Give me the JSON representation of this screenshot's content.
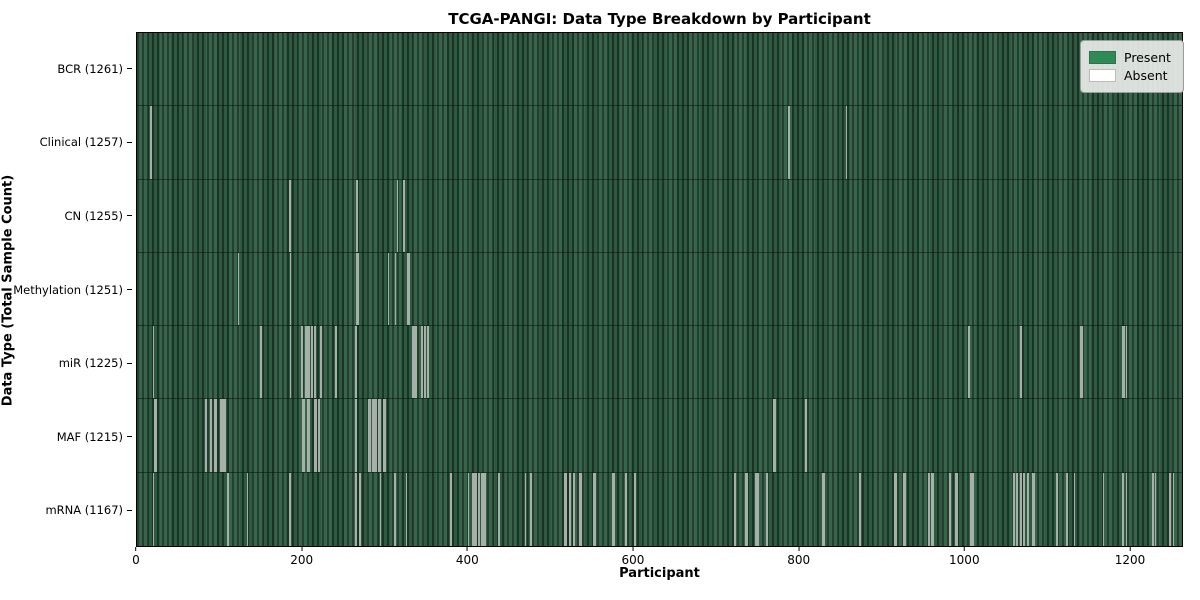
{
  "chart_data": {
    "type": "heatmap",
    "title": "TCGA-PANGI: Data Type Breakdown by Participant",
    "xlabel": "Participant",
    "ylabel": "Data Type (Total Sample Count)",
    "x_ticks": [
      0,
      200,
      400,
      600,
      800,
      1000,
      1200
    ],
    "x_max": 1264,
    "total_participants": 1261,
    "grid": false,
    "legend_position": "upper right",
    "colors": {
      "present": "#2e8b57",
      "absent": "#ffffff",
      "stripe_dark": "#1c3627",
      "stripe_light": "#2f5f44",
      "absent_line": "#a7b0a8"
    },
    "legend": [
      {
        "label": "Present",
        "color": "#2e8b57"
      },
      {
        "label": "Absent",
        "color": "#ffffff"
      }
    ],
    "rows": [
      {
        "label": "BCR (1261)",
        "data_type": "BCR",
        "count": 1261,
        "absent": []
      },
      {
        "label": "Clinical (1257)",
        "data_type": "Clinical",
        "count": 1257,
        "absent": [
          16,
          787,
          788,
          857
        ]
      },
      {
        "label": "CN (1255)",
        "data_type": "CN",
        "count": 1255,
        "absent": [
          184,
          265,
          266,
          314,
          322,
          323
        ]
      },
      {
        "label": "Methylation (1251)",
        "data_type": "Methylation",
        "count": 1251,
        "absent": [
          122,
          185,
          265,
          266,
          267,
          303,
          312,
          326,
          327,
          328
        ]
      },
      {
        "label": "miR (1225)",
        "data_type": "miR",
        "count": 1225,
        "absent": [
          19,
          149,
          185,
          198,
          199,
          203,
          204,
          206,
          207,
          210,
          211,
          214,
          215,
          221,
          222,
          240,
          264,
          333,
          334,
          336,
          337,
          343,
          344,
          347,
          348,
          351,
          352,
          1005,
          1006,
          1068,
          1069,
          1141,
          1142,
          1192,
          1193,
          1196
        ]
      },
      {
        "label": "MAF (1215)",
        "data_type": "MAF",
        "count": 1215,
        "absent": [
          21,
          22,
          82,
          83,
          88,
          89,
          93,
          94,
          95,
          100,
          101,
          102,
          104,
          105,
          106,
          200,
          201,
          206,
          207,
          208,
          214,
          215,
          216,
          219,
          220,
          264,
          265,
          279,
          280,
          281,
          284,
          285,
          287,
          288,
          289,
          291,
          292,
          293,
          297,
          298,
          299,
          769,
          770,
          771,
          808,
          809
        ]
      },
      {
        "label": "mRNA (1167)",
        "data_type": "mRNA",
        "count": 1167,
        "absent": [
          19,
          109,
          133,
          184,
          264,
          269,
          294,
          311,
          325,
          379,
          400,
          405,
          406,
          408,
          409,
          412,
          413,
          416,
          417,
          419,
          420,
          437,
          469,
          475,
          476,
          517,
          518,
          522,
          523,
          527,
          528,
          535,
          536,
          552,
          553,
          575,
          576,
          590,
          591,
          601,
          602,
          722,
          723,
          736,
          737,
          747,
          748,
          750,
          751,
          761,
          762,
          829,
          830,
          873,
          874,
          916,
          917,
          927,
          928,
          957,
          958,
          961,
          962,
          982,
          983,
          990,
          991,
          1007,
          1008,
          1010,
          1011,
          1059,
          1060,
          1063,
          1064,
          1068,
          1069,
          1072,
          1073,
          1076,
          1077,
          1083,
          1084,
          1112,
          1124,
          1133,
          1168,
          1192,
          1196,
          1228,
          1231,
          1248,
          1249,
          1253
        ]
      }
    ]
  }
}
